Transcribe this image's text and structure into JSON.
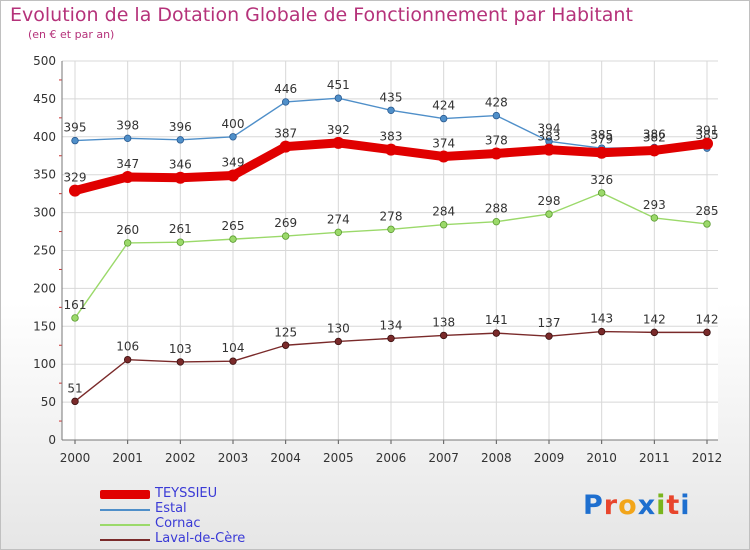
{
  "title": "Evolution de la Dotation Globale de Fonctionnement par Habitant",
  "subtitle": "(en € et par an)",
  "logo_letters": [
    {
      "ch": "P",
      "color": "#1e6fcf"
    },
    {
      "ch": "r",
      "color": "#e8452c"
    },
    {
      "ch": "o",
      "color": "#f2a51a"
    },
    {
      "ch": "x",
      "color": "#1e6fcf"
    },
    {
      "ch": "i",
      "color": "#7ab51d"
    },
    {
      "ch": "t",
      "color": "#e8452c"
    },
    {
      "ch": "i",
      "color": "#1e6fcf"
    }
  ],
  "chart_data": {
    "type": "line",
    "title": "Evolution de la Dotation Globale de Fonctionnement par Habitant",
    "subtitle": "(en € et par an)",
    "xlabel": "",
    "ylabel": "",
    "categories": [
      "2000",
      "2001",
      "2002",
      "2003",
      "2004",
      "2005",
      "2006",
      "2007",
      "2008",
      "2009",
      "2010",
      "2011",
      "2012"
    ],
    "ylim": [
      0,
      500
    ],
    "yticks": [
      0,
      50,
      100,
      150,
      200,
      250,
      300,
      350,
      400,
      450,
      500
    ],
    "grid": true,
    "legend_position": "bottom-left",
    "series": [
      {
        "name": "Estal",
        "color": "#4f8fc9",
        "style": "thin",
        "values": [
          395,
          398,
          396,
          400,
          446,
          451,
          435,
          424,
          428,
          394,
          385,
          386,
          385
        ]
      },
      {
        "name": "Cornac",
        "color": "#9bd96a",
        "style": "thin",
        "values": [
          161,
          260,
          261,
          265,
          269,
          274,
          278,
          284,
          288,
          298,
          326,
          293,
          285
        ]
      },
      {
        "name": "Laval-de-Cère",
        "color": "#7a2a2a",
        "style": "thin",
        "values": [
          51,
          106,
          103,
          104,
          125,
          130,
          134,
          138,
          141,
          137,
          143,
          142,
          142
        ]
      },
      {
        "name": "TEYSSIEU",
        "color": "#e00000",
        "style": "thick",
        "values": [
          329,
          347,
          346,
          349,
          387,
          392,
          383,
          374,
          378,
          383,
          379,
          382,
          391
        ]
      }
    ],
    "legend_order": [
      "TEYSSIEU",
      "Estal",
      "Cornac",
      "Laval-de-Cère"
    ]
  }
}
